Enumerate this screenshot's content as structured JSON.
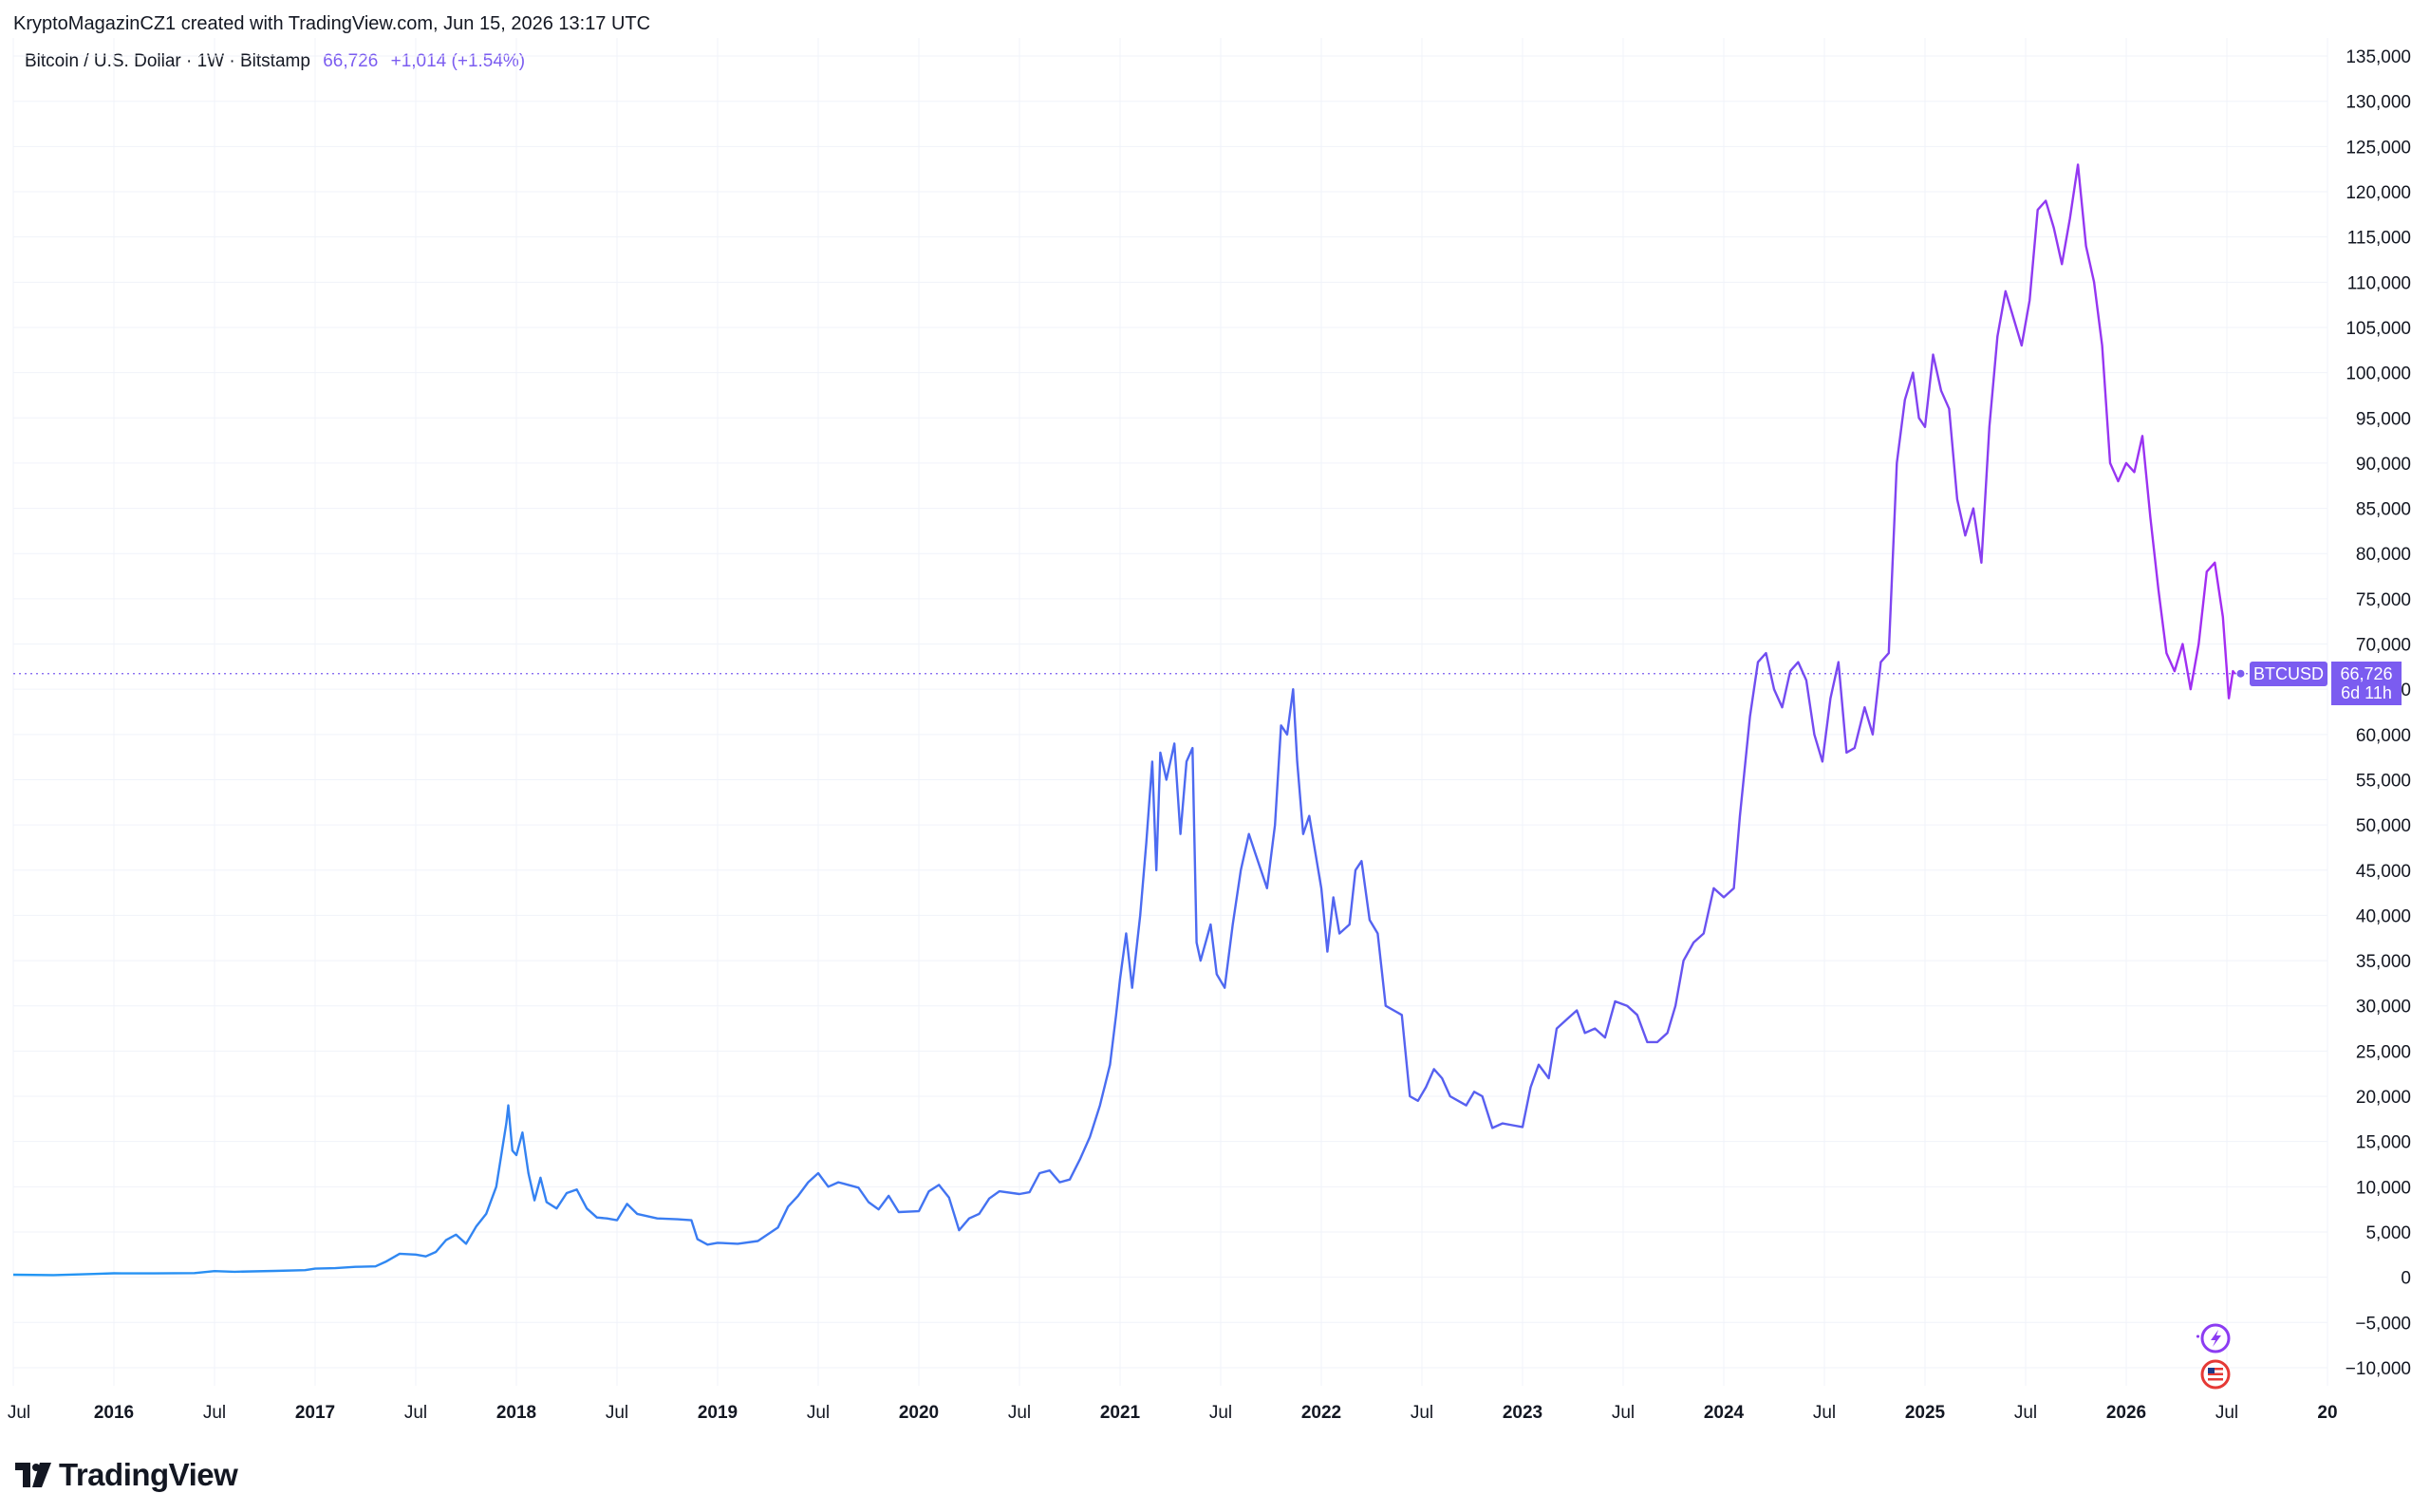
{
  "caption": "KryptoMagazinCZ1 created with TradingView.com, Jun 15, 2026 13:17 UTC",
  "legend": {
    "symbol": "Bitcoin / U.S. Dollar · 1W · Bitstamp",
    "value": "66,726",
    "change": "+1,014 (+1.54%)"
  },
  "price_tag": {
    "symbol": "BTCUSD",
    "value": "66,726",
    "countdown": "6d 11h"
  },
  "brand": "TradingView",
  "colors": {
    "line_start": "#2196f3",
    "line_mid": "#5b5cf0",
    "line_end": "#a52cf2",
    "tag": "#7b5cf0",
    "legend_value": "#7b5cf0",
    "grid": "#f0f3fa"
  },
  "icons": [
    "tradingview-logo-icon",
    "lightning-event-icon",
    "us-flag-event-icon"
  ],
  "chart_data": {
    "type": "line",
    "x_ticks": [
      "Jul",
      "2016",
      "Jul",
      "2017",
      "Jul",
      "2018",
      "Jul",
      "2019",
      "Jul",
      "2020",
      "Jul",
      "2021",
      "Jul",
      "2022",
      "Jul",
      "2023",
      "Jul",
      "2024",
      "Jul",
      "2025",
      "Jul",
      "2026",
      "Jul",
      "20"
    ],
    "y_ticks": [
      "135,000",
      "130,000",
      "125,000",
      "120,000",
      "115,000",
      "110,000",
      "105,000",
      "100,000",
      "95,000",
      "90,000",
      "85,000",
      "80,000",
      "75,000",
      "70,000",
      "65,000",
      "60,000",
      "55,000",
      "50,000",
      "45,000",
      "40,000",
      "35,000",
      "30,000",
      "25,000",
      "20,000",
      "15,000",
      "10,000",
      "5,000",
      "0",
      "−5,000",
      "−10,000"
    ],
    "ylim": [
      -12000,
      137000
    ],
    "xlim": [
      2015.5,
      2027.0
    ],
    "last_value": 66726,
    "series": [
      {
        "points": [
          [
            2015.5,
            280
          ],
          [
            2015.7,
            240
          ],
          [
            2015.9,
            360
          ],
          [
            2016.0,
            430
          ],
          [
            2016.2,
            420
          ],
          [
            2016.4,
            450
          ],
          [
            2016.5,
            680
          ],
          [
            2016.6,
            600
          ],
          [
            2016.8,
            700
          ],
          [
            2016.95,
            780
          ],
          [
            2017.0,
            950
          ],
          [
            2017.1,
            1000
          ],
          [
            2017.2,
            1150
          ],
          [
            2017.3,
            1200
          ],
          [
            2017.35,
            1700
          ],
          [
            2017.42,
            2600
          ],
          [
            2017.5,
            2500
          ],
          [
            2017.55,
            2300
          ],
          [
            2017.6,
            2800
          ],
          [
            2017.65,
            4100
          ],
          [
            2017.7,
            4700
          ],
          [
            2017.75,
            3700
          ],
          [
            2017.8,
            5600
          ],
          [
            2017.85,
            7000
          ],
          [
            2017.9,
            10000
          ],
          [
            2017.95,
            17000
          ],
          [
            2017.96,
            19000
          ],
          [
            2017.98,
            14000
          ],
          [
            2018.0,
            13500
          ],
          [
            2018.03,
            16000
          ],
          [
            2018.06,
            11500
          ],
          [
            2018.09,
            8500
          ],
          [
            2018.12,
            11000
          ],
          [
            2018.15,
            8300
          ],
          [
            2018.2,
            7600
          ],
          [
            2018.25,
            9300
          ],
          [
            2018.3,
            9700
          ],
          [
            2018.35,
            7600
          ],
          [
            2018.4,
            6600
          ],
          [
            2018.45,
            6500
          ],
          [
            2018.5,
            6300
          ],
          [
            2018.55,
            8100
          ],
          [
            2018.6,
            7000
          ],
          [
            2018.7,
            6500
          ],
          [
            2018.8,
            6400
          ],
          [
            2018.87,
            6300
          ],
          [
            2018.9,
            4200
          ],
          [
            2018.95,
            3600
          ],
          [
            2019.0,
            3800
          ],
          [
            2019.1,
            3700
          ],
          [
            2019.2,
            4000
          ],
          [
            2019.3,
            5500
          ],
          [
            2019.35,
            7800
          ],
          [
            2019.4,
            9000
          ],
          [
            2019.45,
            10500
          ],
          [
            2019.5,
            11500
          ],
          [
            2019.55,
            10000
          ],
          [
            2019.6,
            10500
          ],
          [
            2019.7,
            9900
          ],
          [
            2019.75,
            8300
          ],
          [
            2019.8,
            7500
          ],
          [
            2019.85,
            9000
          ],
          [
            2019.9,
            7200
          ],
          [
            2020.0,
            7300
          ],
          [
            2020.05,
            9500
          ],
          [
            2020.1,
            10200
          ],
          [
            2020.15,
            8800
          ],
          [
            2020.2,
            5200
          ],
          [
            2020.25,
            6500
          ],
          [
            2020.3,
            7000
          ],
          [
            2020.35,
            8700
          ],
          [
            2020.4,
            9500
          ],
          [
            2020.5,
            9200
          ],
          [
            2020.55,
            9400
          ],
          [
            2020.6,
            11500
          ],
          [
            2020.65,
            11800
          ],
          [
            2020.7,
            10500
          ],
          [
            2020.75,
            10800
          ],
          [
            2020.8,
            13000
          ],
          [
            2020.85,
            15500
          ],
          [
            2020.9,
            19000
          ],
          [
            2020.95,
            23500
          ],
          [
            2020.98,
            29000
          ],
          [
            2021.0,
            33000
          ],
          [
            2021.03,
            38000
          ],
          [
            2021.06,
            32000
          ],
          [
            2021.1,
            40000
          ],
          [
            2021.13,
            48000
          ],
          [
            2021.16,
            57000
          ],
          [
            2021.18,
            45000
          ],
          [
            2021.2,
            58000
          ],
          [
            2021.23,
            55000
          ],
          [
            2021.27,
            59000
          ],
          [
            2021.3,
            49000
          ],
          [
            2021.33,
            57000
          ],
          [
            2021.36,
            58500
          ],
          [
            2021.38,
            37000
          ],
          [
            2021.4,
            35000
          ],
          [
            2021.45,
            39000
          ],
          [
            2021.48,
            33500
          ],
          [
            2021.52,
            32000
          ],
          [
            2021.56,
            39000
          ],
          [
            2021.6,
            45000
          ],
          [
            2021.64,
            49000
          ],
          [
            2021.67,
            47000
          ],
          [
            2021.7,
            45000
          ],
          [
            2021.73,
            43000
          ],
          [
            2021.77,
            50000
          ],
          [
            2021.8,
            61000
          ],
          [
            2021.83,
            60000
          ],
          [
            2021.86,
            65000
          ],
          [
            2021.88,
            57000
          ],
          [
            2021.91,
            49000
          ],
          [
            2021.94,
            51000
          ],
          [
            2021.97,
            47000
          ],
          [
            2022.0,
            43000
          ],
          [
            2022.03,
            36000
          ],
          [
            2022.06,
            42000
          ],
          [
            2022.09,
            38000
          ],
          [
            2022.14,
            39000
          ],
          [
            2022.17,
            45000
          ],
          [
            2022.2,
            46000
          ],
          [
            2022.24,
            39500
          ],
          [
            2022.28,
            38000
          ],
          [
            2022.32,
            30000
          ],
          [
            2022.36,
            29500
          ],
          [
            2022.4,
            29000
          ],
          [
            2022.44,
            20000
          ],
          [
            2022.48,
            19500
          ],
          [
            2022.52,
            21000
          ],
          [
            2022.56,
            23000
          ],
          [
            2022.6,
            22000
          ],
          [
            2022.64,
            20000
          ],
          [
            2022.68,
            19500
          ],
          [
            2022.72,
            19000
          ],
          [
            2022.76,
            20500
          ],
          [
            2022.8,
            20000
          ],
          [
            2022.85,
            16500
          ],
          [
            2022.9,
            17000
          ],
          [
            2022.95,
            16800
          ],
          [
            2023.0,
            16600
          ],
          [
            2023.04,
            21000
          ],
          [
            2023.08,
            23500
          ],
          [
            2023.13,
            22000
          ],
          [
            2023.17,
            27500
          ],
          [
            2023.22,
            28500
          ],
          [
            2023.27,
            29500
          ],
          [
            2023.31,
            27000
          ],
          [
            2023.36,
            27500
          ],
          [
            2023.41,
            26500
          ],
          [
            2023.46,
            30500
          ],
          [
            2023.52,
            30000
          ],
          [
            2023.57,
            29000
          ],
          [
            2023.62,
            26000
          ],
          [
            2023.67,
            26000
          ],
          [
            2023.72,
            27000
          ],
          [
            2023.76,
            30000
          ],
          [
            2023.8,
            35000
          ],
          [
            2023.85,
            37000
          ],
          [
            2023.9,
            38000
          ],
          [
            2023.95,
            43000
          ],
          [
            2024.0,
            42000
          ],
          [
            2024.05,
            43000
          ],
          [
            2024.08,
            51000
          ],
          [
            2024.13,
            62000
          ],
          [
            2024.17,
            68000
          ],
          [
            2024.21,
            69000
          ],
          [
            2024.25,
            65000
          ],
          [
            2024.29,
            63000
          ],
          [
            2024.33,
            67000
          ],
          [
            2024.37,
            68000
          ],
          [
            2024.41,
            66000
          ],
          [
            2024.45,
            60000
          ],
          [
            2024.49,
            57000
          ],
          [
            2024.53,
            64000
          ],
          [
            2024.57,
            68000
          ],
          [
            2024.61,
            58000
          ],
          [
            2024.65,
            58500
          ],
          [
            2024.7,
            63000
          ],
          [
            2024.74,
            60000
          ],
          [
            2024.78,
            68000
          ],
          [
            2024.82,
            69000
          ],
          [
            2024.86,
            90000
          ],
          [
            2024.9,
            97000
          ],
          [
            2024.94,
            100000
          ],
          [
            2024.97,
            95000
          ],
          [
            2025.0,
            94000
          ],
          [
            2025.04,
            102000
          ],
          [
            2025.08,
            98000
          ],
          [
            2025.12,
            96000
          ],
          [
            2025.16,
            86000
          ],
          [
            2025.2,
            82000
          ],
          [
            2025.24,
            85000
          ],
          [
            2025.28,
            79000
          ],
          [
            2025.32,
            94000
          ],
          [
            2025.36,
            104000
          ],
          [
            2025.4,
            109000
          ],
          [
            2025.44,
            106000
          ],
          [
            2025.48,
            103000
          ],
          [
            2025.52,
            108000
          ],
          [
            2025.56,
            118000
          ],
          [
            2025.6,
            119000
          ],
          [
            2025.64,
            116000
          ],
          [
            2025.68,
            112000
          ],
          [
            2025.72,
            117000
          ],
          [
            2025.76,
            123000
          ],
          [
            2025.8,
            114000
          ],
          [
            2025.84,
            110000
          ],
          [
            2025.88,
            103000
          ],
          [
            2025.92,
            90000
          ],
          [
            2025.96,
            88000
          ],
          [
            2026.0,
            90000
          ],
          [
            2026.04,
            89000
          ],
          [
            2026.08,
            93000
          ],
          [
            2026.12,
            84000
          ],
          [
            2026.16,
            76000
          ],
          [
            2026.2,
            69000
          ],
          [
            2026.24,
            67000
          ],
          [
            2026.28,
            70000
          ],
          [
            2026.32,
            65000
          ],
          [
            2026.36,
            70000
          ],
          [
            2026.4,
            78000
          ],
          [
            2026.44,
            79000
          ],
          [
            2026.48,
            73000
          ],
          [
            2026.51,
            64000
          ],
          [
            2026.53,
            67000
          ],
          [
            2026.54,
            66726
          ]
        ]
      }
    ]
  }
}
